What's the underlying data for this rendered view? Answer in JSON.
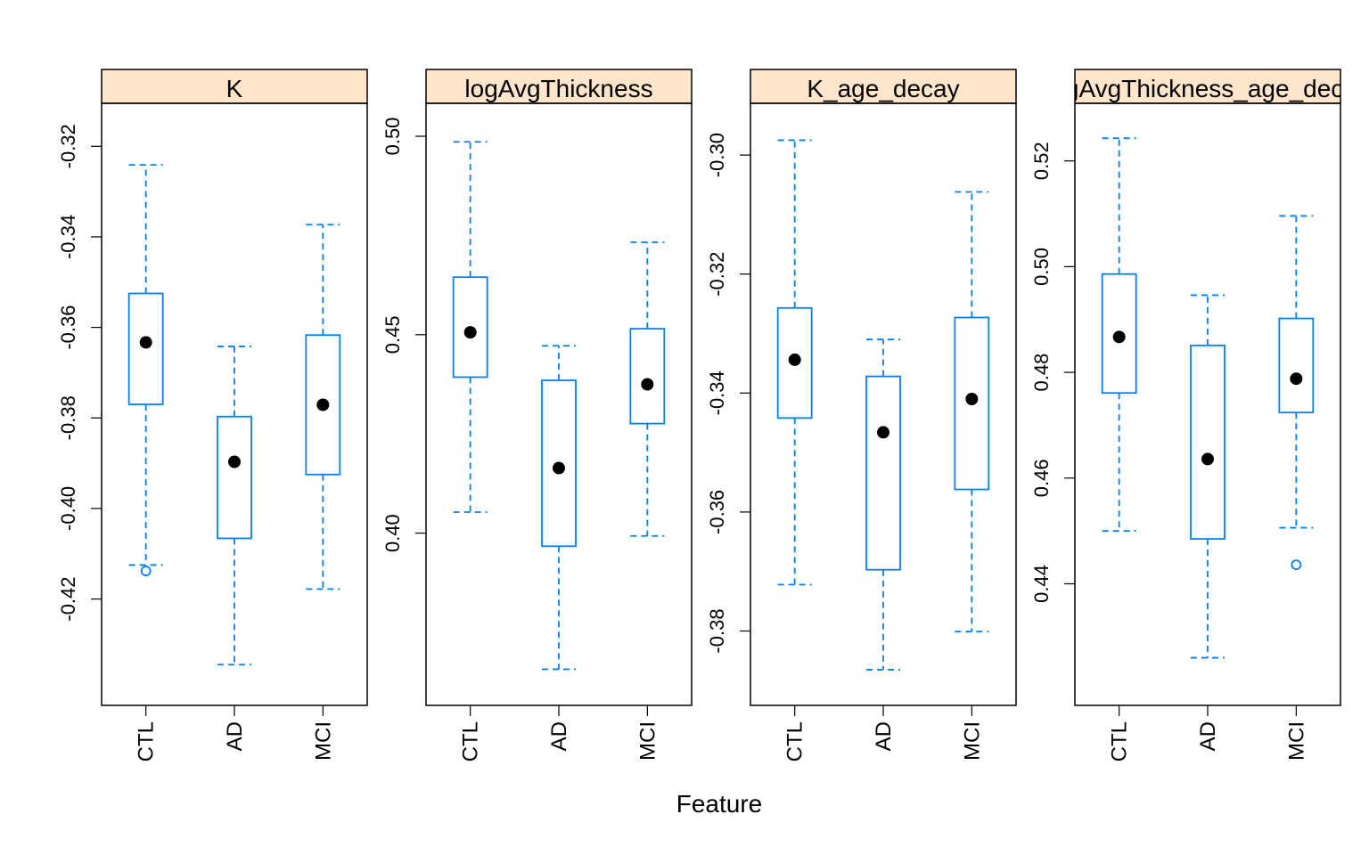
{
  "chart_data": {
    "type": "boxplot",
    "xlabel": "Feature",
    "categories": [
      "CTL",
      "AD",
      "MCI"
    ],
    "colors": {
      "box": "#0080ff",
      "median_dot": "#000000",
      "strip": "#ffe5cc",
      "frame": "#000000"
    },
    "panels": [
      {
        "title": "K",
        "ylim": [
          -0.4435,
          -0.3105
        ],
        "yticks": [
          -0.32,
          -0.34,
          -0.36,
          -0.38,
          -0.4,
          -0.42
        ],
        "yticklabels": [
          "-0.32",
          "-0.34",
          "-0.36",
          "-0.38",
          "-0.40",
          "-0.42"
        ],
        "boxes": [
          {
            "whisker_low": -0.4125,
            "q1": -0.377,
            "median": -0.3633,
            "q3": -0.3525,
            "whisker_high": -0.3241,
            "outliers": [
              -0.4138
            ]
          },
          {
            "whisker_low": -0.4345,
            "q1": -0.4066,
            "median": -0.3897,
            "q3": -0.3797,
            "whisker_high": -0.3642,
            "outliers": []
          },
          {
            "whisker_low": -0.4178,
            "q1": -0.3925,
            "median": -0.3771,
            "q3": -0.3617,
            "whisker_high": -0.3373,
            "outliers": []
          }
        ]
      },
      {
        "title": "logAvgThickness",
        "ylim": [
          0.3566,
          0.5083
        ],
        "yticks": [
          0.5,
          0.45,
          0.4
        ],
        "yticklabels": [
          "0.50",
          "0.45",
          "0.40"
        ],
        "boxes": [
          {
            "whisker_low": 0.4053,
            "q1": 0.4393,
            "median": 0.4506,
            "q3": 0.4645,
            "whisker_high": 0.4986,
            "outliers": []
          },
          {
            "whisker_low": 0.3657,
            "q1": 0.3967,
            "median": 0.4164,
            "q3": 0.4385,
            "whisker_high": 0.4472,
            "outliers": []
          },
          {
            "whisker_low": 0.3993,
            "q1": 0.4276,
            "median": 0.4375,
            "q3": 0.4515,
            "whisker_high": 0.4733,
            "outliers": []
          }
        ]
      },
      {
        "title": "K_age_decay",
        "ylim": [
          -0.3925,
          -0.2913
        ],
        "yticks": [
          -0.3,
          -0.32,
          -0.34,
          -0.36,
          -0.38
        ],
        "yticklabels": [
          "-0.30",
          "-0.32",
          "-0.34",
          "-0.36",
          "-0.38"
        ],
        "boxes": [
          {
            "whisker_low": -0.3722,
            "q1": -0.3442,
            "median": -0.3344,
            "q3": -0.3257,
            "whisker_high": -0.2975,
            "outliers": []
          },
          {
            "whisker_low": -0.3865,
            "q1": -0.3697,
            "median": -0.3466,
            "q3": -0.3372,
            "whisker_high": -0.331,
            "outliers": []
          },
          {
            "whisker_low": -0.3801,
            "q1": -0.3562,
            "median": -0.341,
            "q3": -0.3273,
            "whisker_high": -0.3062,
            "outliers": []
          }
        ]
      },
      {
        "title": "logAvgThickness_age_decay",
        "ylim": [
          0.417,
          0.5309
        ],
        "yticks": [
          0.52,
          0.5,
          0.48,
          0.46,
          0.44
        ],
        "yticklabels": [
          "0.52",
          "0.50",
          "0.48",
          "0.46",
          "0.44"
        ],
        "boxes": [
          {
            "whisker_low": 0.45,
            "q1": 0.4761,
            "median": 0.4867,
            "q3": 0.4986,
            "whisker_high": 0.5243,
            "outliers": []
          },
          {
            "whisker_low": 0.426,
            "q1": 0.4485,
            "median": 0.4636,
            "q3": 0.4851,
            "whisker_high": 0.4946,
            "outliers": []
          },
          {
            "whisker_low": 0.4506,
            "q1": 0.4724,
            "median": 0.4788,
            "q3": 0.4902,
            "whisker_high": 0.5096,
            "outliers": [
              0.4436
            ]
          }
        ]
      }
    ]
  }
}
